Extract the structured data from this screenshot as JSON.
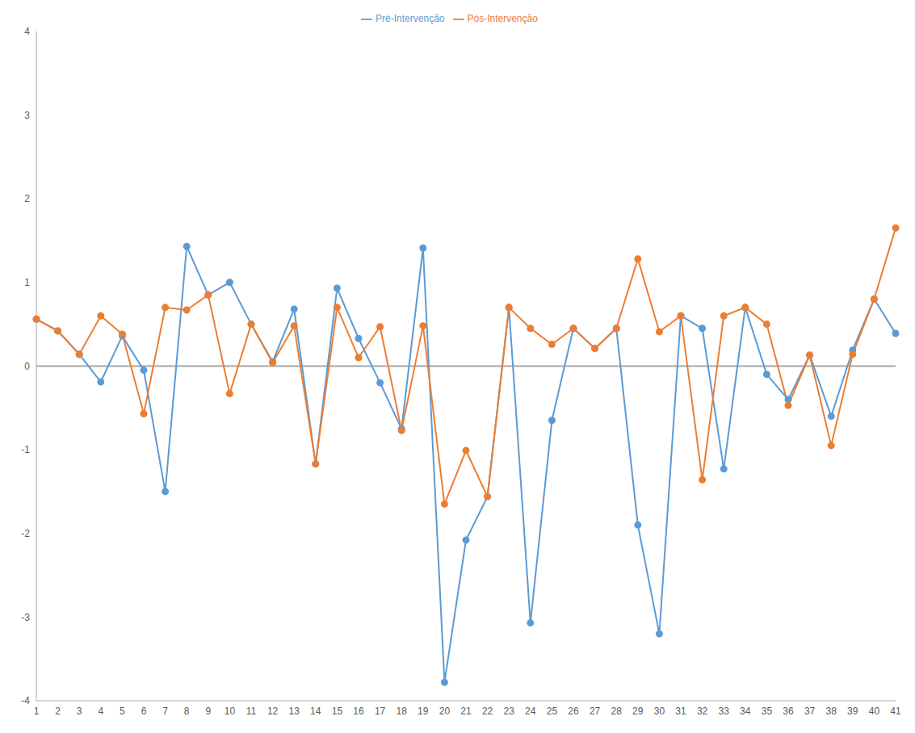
{
  "chart_data": {
    "type": "line",
    "categories": [
      "1",
      "2",
      "3",
      "4",
      "5",
      "6",
      "7",
      "8",
      "9",
      "10",
      "11",
      "12",
      "13",
      "14",
      "15",
      "16",
      "17",
      "18",
      "19",
      "20",
      "21",
      "22",
      "23",
      "24",
      "25",
      "26",
      "27",
      "28",
      "29",
      "30",
      "31",
      "32",
      "33",
      "34",
      "35",
      "36",
      "37",
      "38",
      "39",
      "40",
      "41"
    ],
    "series": [
      {
        "name": "Pré-Intervenção",
        "color": "#5b9bd5",
        "marker": "circle",
        "values": [
          0.56,
          0.42,
          0.14,
          -0.19,
          0.36,
          -0.05,
          -1.5,
          1.43,
          0.85,
          1.0,
          0.5,
          0.05,
          0.68,
          -1.17,
          0.93,
          0.33,
          -0.2,
          -0.75,
          1.41,
          -3.78,
          -2.08,
          -1.56,
          0.7,
          -3.07,
          -0.65,
          0.45,
          0.21,
          0.45,
          -1.9,
          -3.2,
          0.6,
          0.45,
          -1.23,
          0.7,
          -0.1,
          -0.4,
          0.13,
          -0.6,
          0.19,
          0.8,
          0.39
        ]
      },
      {
        "name": "Pós-Intervenção",
        "color": "#ed7d31",
        "marker": "circle",
        "values": [
          0.56,
          0.42,
          0.14,
          0.6,
          0.38,
          -0.57,
          0.7,
          0.67,
          0.85,
          -0.33,
          0.5,
          0.04,
          0.48,
          -1.17,
          0.7,
          0.1,
          0.47,
          -0.77,
          0.48,
          -1.65,
          -1.01,
          -1.56,
          0.7,
          0.45,
          0.26,
          0.45,
          0.21,
          0.45,
          1.28,
          0.41,
          0.6,
          -1.36,
          0.6,
          0.7,
          0.5,
          -0.47,
          0.13,
          -0.95,
          0.14,
          0.8,
          1.65
        ]
      }
    ],
    "ylim": [
      -4,
      4
    ],
    "yticks": [
      -4,
      -3,
      -2,
      -1,
      0,
      1,
      2,
      3,
      4
    ],
    "grid": false,
    "legend": "top"
  }
}
